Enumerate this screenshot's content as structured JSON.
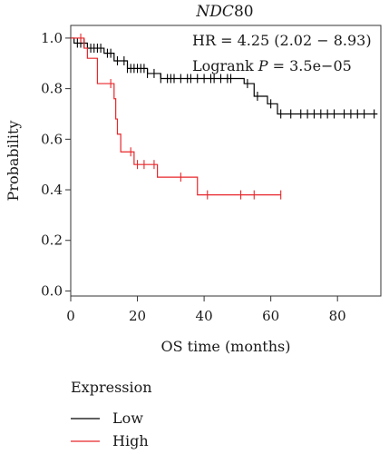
{
  "chart_data": {
    "type": "line",
    "title_gene": "NDC",
    "title_suffix": "80",
    "xlabel": "OS time (months)",
    "ylabel": "Probability",
    "xlim": [
      0,
      93
    ],
    "ylim": [
      -0.02,
      1.05
    ],
    "xticks": [
      0,
      20,
      40,
      60,
      80
    ],
    "yticks": [
      0.0,
      0.2,
      0.4,
      0.6,
      0.8,
      1.0
    ],
    "xtick_labels": [
      "0",
      "20",
      "40",
      "60",
      "80"
    ],
    "ytick_labels": [
      "0.0",
      "0.2",
      "0.4",
      "0.6",
      "0.8",
      "1.0"
    ],
    "grid": false,
    "annotations": {
      "hr": "HR = 4.25 (2.02 − 8.93)",
      "logrank_label": "Logrank ",
      "logrank_p": "P",
      "logrank_value": " = 3.5e−05"
    },
    "legend": {
      "title": "Expression",
      "placement": "bottom-left",
      "entries": [
        "Low",
        "High"
      ]
    },
    "series": [
      {
        "name": "Low",
        "color": "#000000",
        "steps": [
          [
            0,
            1.0
          ],
          [
            1,
            0.98
          ],
          [
            5,
            0.96
          ],
          [
            10,
            0.94
          ],
          [
            13,
            0.91
          ],
          [
            17,
            0.88
          ],
          [
            23,
            0.86
          ],
          [
            27,
            0.84
          ],
          [
            52,
            0.82
          ],
          [
            55,
            0.77
          ],
          [
            59,
            0.74
          ],
          [
            62,
            0.7
          ],
          [
            92,
            0.7
          ]
        ],
        "censors": [
          2,
          3,
          4,
          6,
          7,
          8,
          9,
          11,
          12,
          14,
          16,
          17,
          18,
          19,
          20,
          21,
          22,
          23,
          25,
          27,
          29,
          30,
          31,
          33,
          35,
          36,
          38,
          40,
          42,
          43,
          45,
          47,
          48,
          53,
          56,
          60,
          63,
          66,
          69,
          71,
          73,
          75,
          77,
          79,
          82,
          84,
          86,
          88,
          91
        ]
      },
      {
        "name": "High",
        "color": "#e8262a",
        "steps": [
          [
            0,
            1.0
          ],
          [
            4,
            0.96
          ],
          [
            5,
            0.92
          ],
          [
            8,
            0.82
          ],
          [
            13,
            0.76
          ],
          [
            13.5,
            0.68
          ],
          [
            14,
            0.62
          ],
          [
            15,
            0.55
          ],
          [
            19,
            0.5
          ],
          [
            26,
            0.45
          ],
          [
            38,
            0.38
          ],
          [
            63,
            0.38
          ]
        ],
        "censors": [
          3,
          12,
          18,
          20,
          22,
          25,
          33,
          41,
          51,
          55,
          63
        ]
      }
    ]
  }
}
